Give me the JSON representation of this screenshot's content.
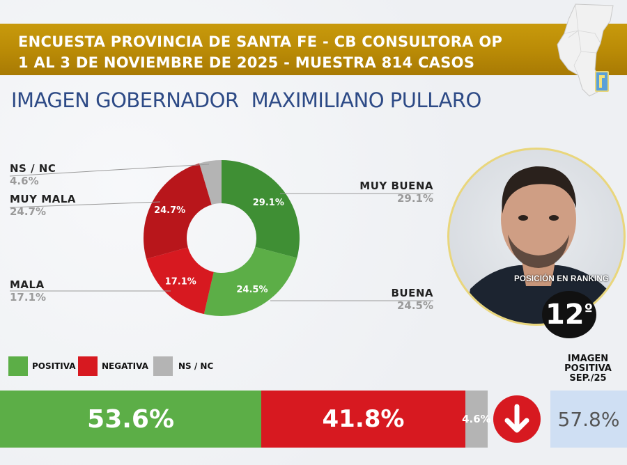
{
  "header": {
    "line1": "ENCUESTA PROVINCIA DE SANTA FE - CB CONSULTORA OP",
    "line2": "1 AL 3 DE NOVIEMBRE DE 2025 - MUESTRA 814 CASOS"
  },
  "subtitle": {
    "part1": "IMAGEN GOBERNADOR",
    "part2": "MAXIMILIANO PULLARO"
  },
  "colors": {
    "header": "#b98a06",
    "positive": "#3f8f34",
    "positive_light": "#5cae47",
    "negative": "#b8161b",
    "negative_light": "#d71920",
    "nsnc": "#b4b4b4",
    "title_blue": "#2d4a86",
    "prev_box": "#cfdff3"
  },
  "ranking": {
    "label": "POSICIÓN EN RANKING",
    "value": "12",
    "suffix": "º"
  },
  "legend": {
    "positive": "POSITIVA",
    "negative": "NEGATIVA",
    "nsnc": "NS / NC"
  },
  "previous": {
    "title": [
      "IMAGEN",
      "POSITIVA",
      "SEP./25"
    ],
    "value": "57.8%"
  },
  "icons": {
    "map": "santa-fe-map-icon",
    "arrow": "arrow-down-icon",
    "photo": "governor-photo"
  },
  "chart_data": [
    {
      "type": "pie",
      "title": "",
      "slices": [
        {
          "label": "MUY BUENA",
          "value": 29.1,
          "display": "29.1%",
          "color": "#3f8f34"
        },
        {
          "label": "BUENA",
          "value": 24.5,
          "display": "24.5%",
          "color": "#5cae47"
        },
        {
          "label": "MALA",
          "value": 17.1,
          "display": "17.1%",
          "color": "#d71920"
        },
        {
          "label": "MUY MALA",
          "value": 24.7,
          "display": "24.7%",
          "color": "#b8161b"
        },
        {
          "label": "NS / NC",
          "value": 4.6,
          "display": "4.6%",
          "color": "#b4b4b4"
        }
      ]
    },
    {
      "type": "bar",
      "stacked": true,
      "categories": [
        "POSITIVA",
        "NEGATIVA",
        "NS / NC"
      ],
      "values": [
        53.6,
        41.8,
        4.6
      ],
      "labels": [
        "53.6%",
        "41.8%",
        "4.6%"
      ],
      "colors": [
        "#5cae47",
        "#d71920",
        "#b4b4b4"
      ]
    }
  ]
}
